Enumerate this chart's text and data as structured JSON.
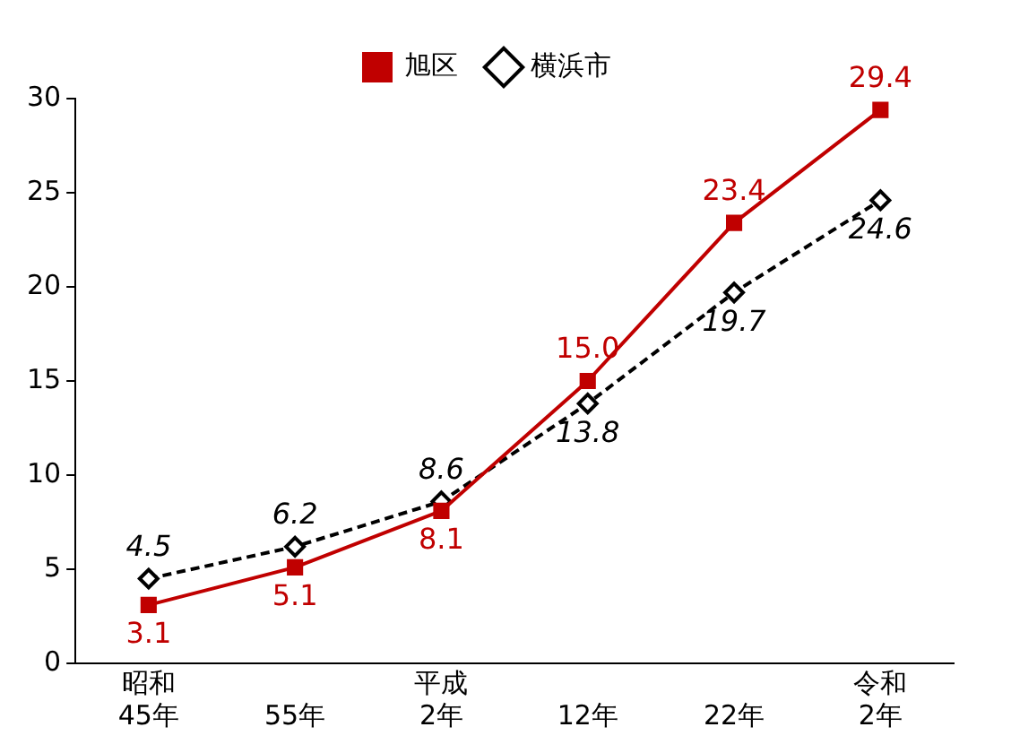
{
  "chart_data": {
    "type": "line",
    "categories": [
      "昭和\n45年",
      "55年",
      "平成\n2年",
      "12年",
      "22年",
      "令和\n2年"
    ],
    "series": [
      {
        "name": "旭区",
        "color": "#c00000",
        "values": [
          3.1,
          5.1,
          8.1,
          15.0,
          23.4,
          29.4
        ],
        "value_labels": [
          "3.1",
          "5.1",
          "8.1",
          "15.0",
          "23.4",
          "29.4"
        ],
        "marker": "square",
        "line_style": "solid"
      },
      {
        "name": "横浜市",
        "color": "#000000",
        "values": [
          4.5,
          6.2,
          8.6,
          13.8,
          19.7,
          24.6
        ],
        "value_labels": [
          "4.5",
          "6.2",
          "8.6",
          "13.8",
          "19.7",
          "24.6"
        ],
        "marker": "diamond",
        "line_style": "dashed"
      }
    ],
    "ylim": [
      0,
      30
    ],
    "yticks": [
      0,
      5,
      10,
      15,
      20,
      25,
      30
    ],
    "grid": false,
    "legend": "top"
  }
}
